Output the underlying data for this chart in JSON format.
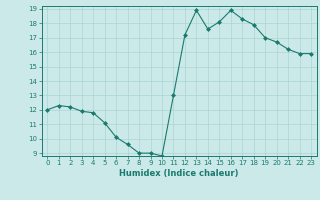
{
  "x": [
    0,
    1,
    2,
    3,
    4,
    5,
    6,
    7,
    8,
    9,
    10,
    11,
    12,
    13,
    14,
    15,
    16,
    17,
    18,
    19,
    20,
    21,
    22,
    23
  ],
  "y": [
    12.0,
    12.3,
    12.2,
    11.9,
    11.8,
    11.1,
    10.1,
    9.6,
    9.0,
    9.0,
    8.8,
    13.0,
    17.2,
    18.9,
    17.6,
    18.1,
    18.9,
    18.3,
    17.9,
    17.0,
    16.7,
    16.2,
    15.9,
    15.9
  ],
  "line_color": "#1a7a6e",
  "marker": "D",
  "marker_size": 2,
  "bg_color": "#cce9e9",
  "grid_color": "#aad4d4",
  "xlabel": "Humidex (Indice chaleur)",
  "ylim": [
    9,
    19
  ],
  "xlim": [
    -0.5,
    23.5
  ],
  "yticks": [
    9,
    10,
    11,
    12,
    13,
    14,
    15,
    16,
    17,
    18,
    19
  ],
  "xticks": [
    0,
    1,
    2,
    3,
    4,
    5,
    6,
    7,
    8,
    9,
    10,
    11,
    12,
    13,
    14,
    15,
    16,
    17,
    18,
    19,
    20,
    21,
    22,
    23
  ],
  "tick_color": "#1a7a6e",
  "label_fontsize": 6,
  "tick_fontsize": 5
}
